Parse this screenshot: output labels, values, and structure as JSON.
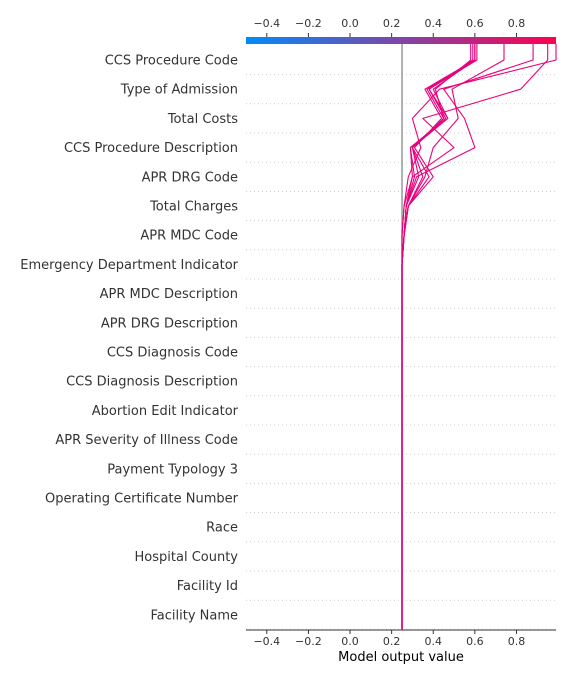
{
  "chart_data": {
    "type": "line",
    "subtype": "shap-decision-plot",
    "xlabel": "Model output value",
    "xlim": [
      -0.5,
      0.99
    ],
    "x_ticks": [
      -0.4,
      -0.2,
      0.0,
      0.2,
      0.4,
      0.6,
      0.8
    ],
    "x_tick_labels": [
      "−0.4",
      "−0.2",
      "0.0",
      "0.2",
      "0.4",
      "0.6",
      "0.8"
    ],
    "base_value": 0.25,
    "colorbar": {
      "low": "#008bfb",
      "high": "#ff0051",
      "position": "top"
    },
    "grid": "dotted horizontal",
    "features": [
      "CCS Procedure Code",
      "Type of Admission",
      "Total Costs",
      "CCS Procedure Description",
      "APR DRG Code",
      "Total Charges",
      "APR MDC Code",
      "Emergency Department Indicator",
      "APR MDC Description",
      "APR DRG Description",
      "CCS Diagnosis Code",
      "CCS Diagnosis Description",
      "Abortion Edit Indicator",
      "APR Severity of Illness Code",
      "Payment Typology 3",
      "Operating Certificate Number",
      "Race",
      "Hospital County",
      "Facility Id",
      "Facility Name"
    ],
    "series": [
      {
        "color": "#e6007e",
        "x": [
          0.25,
          0.25,
          0.25,
          0.25,
          0.25,
          0.25,
          0.25,
          0.25,
          0.25,
          0.25,
          0.25,
          0.25,
          0.25,
          0.26,
          0.28,
          0.38,
          0.3,
          0.45,
          0.37,
          0.6
        ]
      },
      {
        "color": "#e6007e",
        "x": [
          0.25,
          0.25,
          0.25,
          0.25,
          0.25,
          0.25,
          0.25,
          0.25,
          0.25,
          0.25,
          0.25,
          0.25,
          0.25,
          0.26,
          0.27,
          0.3,
          0.29,
          0.47,
          0.4,
          0.6
        ]
      },
      {
        "color": "#e6007e",
        "x": [
          0.25,
          0.25,
          0.25,
          0.25,
          0.25,
          0.25,
          0.25,
          0.25,
          0.25,
          0.25,
          0.25,
          0.25,
          0.25,
          0.26,
          0.27,
          0.31,
          0.29,
          0.46,
          0.38,
          0.59
        ]
      },
      {
        "color": "#e4007f",
        "x": [
          0.25,
          0.25,
          0.25,
          0.25,
          0.25,
          0.25,
          0.25,
          0.25,
          0.25,
          0.25,
          0.25,
          0.25,
          0.25,
          0.26,
          0.28,
          0.4,
          0.31,
          0.44,
          0.36,
          0.6
        ]
      },
      {
        "color": "#e8007d",
        "x": [
          0.25,
          0.25,
          0.25,
          0.25,
          0.25,
          0.25,
          0.25,
          0.25,
          0.25,
          0.25,
          0.25,
          0.25,
          0.25,
          0.26,
          0.28,
          0.35,
          0.3,
          0.47,
          0.38,
          0.61
        ]
      },
      {
        "color": "#e4007f",
        "x": [
          0.25,
          0.25,
          0.25,
          0.25,
          0.25,
          0.25,
          0.25,
          0.25,
          0.25,
          0.25,
          0.25,
          0.25,
          0.25,
          0.26,
          0.27,
          0.33,
          0.3,
          0.45,
          0.41,
          0.58
        ]
      },
      {
        "color": "#ec007a",
        "x": [
          0.25,
          0.25,
          0.25,
          0.25,
          0.25,
          0.25,
          0.25,
          0.25,
          0.25,
          0.25,
          0.25,
          0.25,
          0.25,
          0.25,
          0.26,
          0.28,
          0.34,
          0.3,
          0.43,
          0.99
        ]
      },
      {
        "color": "#ee0077",
        "x": [
          0.25,
          0.25,
          0.25,
          0.25,
          0.25,
          0.25,
          0.25,
          0.25,
          0.25,
          0.25,
          0.25,
          0.25,
          0.25,
          0.25,
          0.26,
          0.3,
          0.5,
          0.35,
          0.82,
          0.95
        ]
      },
      {
        "color": "#ec0078",
        "x": [
          0.25,
          0.25,
          0.25,
          0.25,
          0.25,
          0.25,
          0.25,
          0.25,
          0.25,
          0.25,
          0.25,
          0.25,
          0.25,
          0.26,
          0.27,
          0.32,
          0.6,
          0.55,
          0.45,
          0.88
        ]
      },
      {
        "color": "#ea007a",
        "x": [
          0.25,
          0.25,
          0.25,
          0.25,
          0.25,
          0.25,
          0.25,
          0.25,
          0.25,
          0.25,
          0.25,
          0.25,
          0.25,
          0.26,
          0.28,
          0.36,
          0.4,
          0.52,
          0.49,
          0.74
        ]
      }
    ]
  }
}
